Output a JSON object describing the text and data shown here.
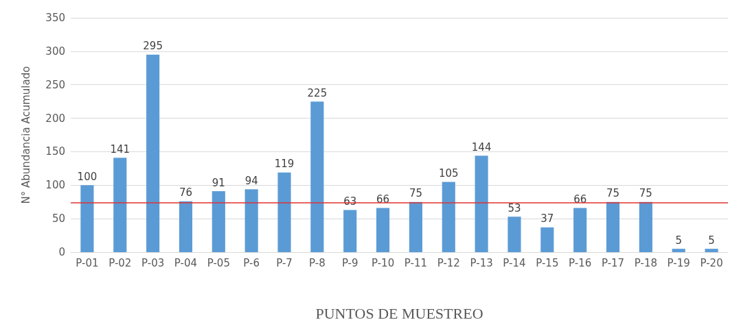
{
  "chart_data": {
    "type": "bar",
    "xlabel": "PUNTOS DE MUESTREO",
    "ylabel": "N° Abundancia Acumulado",
    "categories": [
      "P-01",
      "P-02",
      "P-03",
      "P-04",
      "P-05",
      "P-6",
      "P-7",
      "P-8",
      "P-9",
      "P-10",
      "P-11",
      "P-12",
      "P-13",
      "P-14",
      "P-15",
      "P-16",
      "P-17",
      "P-18",
      "P-19",
      "P-20"
    ],
    "values": [
      100,
      141,
      295,
      76,
      91,
      94,
      119,
      225,
      63,
      66,
      75,
      105,
      144,
      53,
      37,
      66,
      75,
      75,
      5,
      5
    ],
    "color": "#5b9bd5",
    "ylim": [
      0,
      350
    ],
    "yticks": [
      0,
      50,
      100,
      150,
      200,
      250,
      300,
      350
    ],
    "grid": "y",
    "data_labels": true,
    "ref_lines": [
      {
        "axis": "y",
        "value": 74,
        "color": "#e03030"
      }
    ]
  }
}
